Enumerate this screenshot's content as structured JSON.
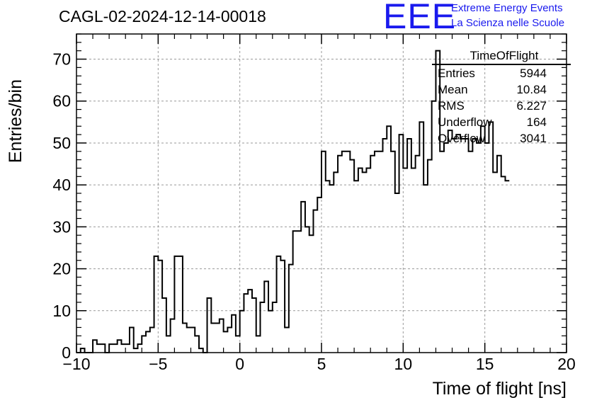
{
  "chart_data": {
    "type": "bar",
    "histogram": true,
    "title": "CAGL-02-2024-12-14-00018",
    "xlabel": "Time of flight [ns]",
    "ylabel": "Entries/bin",
    "xlim": [
      -10,
      20
    ],
    "ylim": [
      0,
      76
    ],
    "grid": true,
    "bin_width": 0.25,
    "bin_start": -10,
    "xticks": [
      -10,
      -5,
      0,
      5,
      10,
      15,
      20
    ],
    "yticks": [
      0,
      10,
      20,
      30,
      40,
      50,
      60,
      70
    ],
    "values": [
      0,
      1,
      0,
      0,
      3,
      2,
      2,
      0,
      2,
      2,
      3,
      2,
      2,
      6,
      1,
      2,
      4,
      5,
      6,
      23,
      22,
      13,
      4,
      8,
      23,
      23,
      7,
      6,
      6,
      4,
      1,
      0,
      13,
      7,
      7,
      8,
      5,
      6,
      9,
      4,
      10,
      14,
      15,
      13,
      4,
      12,
      17,
      10,
      12,
      23,
      22,
      6,
      21,
      29,
      29,
      36,
      30,
      28,
      34,
      37,
      48,
      41,
      40,
      43,
      47,
      48,
      48,
      46,
      41,
      44,
      43,
      44,
      47,
      48,
      48,
      51,
      54,
      48,
      38,
      52,
      44,
      51,
      44,
      47,
      55,
      40,
      46,
      60,
      72,
      48,
      50,
      53,
      51,
      52,
      51,
      51,
      48,
      51,
      50,
      54,
      50,
      55,
      43,
      47,
      42,
      41
    ],
    "stats_box": {
      "title": "TimeOfFlight",
      "rows": [
        {
          "label": "Entries",
          "value": "5944"
        },
        {
          "label": "Mean",
          "value": "10.84"
        },
        {
          "label": "RMS",
          "value": "6.227"
        },
        {
          "label": "Underflow",
          "value": "164"
        },
        {
          "label": "Overflow",
          "value": "3041"
        }
      ]
    }
  },
  "branding": {
    "logo": "EEE",
    "line1": "Extreme Energy Events",
    "line2": "La Scienza nelle Scuole",
    "color": "#1a1aee"
  }
}
